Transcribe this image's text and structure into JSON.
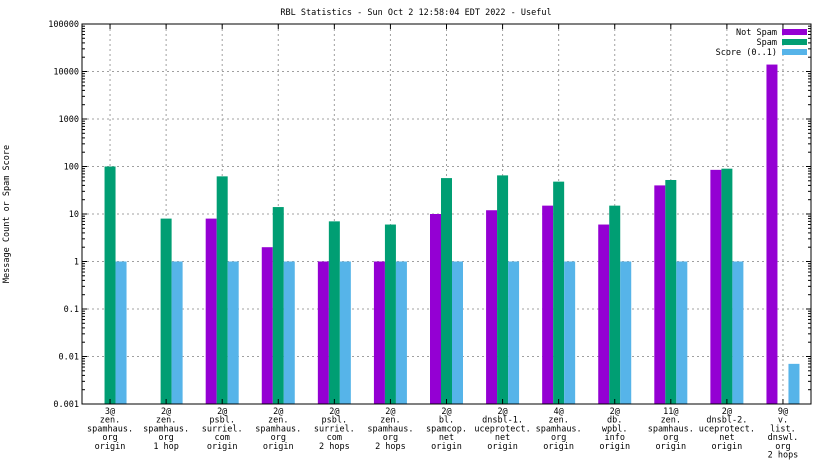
{
  "chart_data": {
    "type": "bar",
    "scale": "log",
    "title": "RBL Statistics - Sun Oct  2 12:58:04 EDT 2022 - Useful",
    "xlabel": "",
    "ylabel": "Message Count or Spam Score",
    "ylim": [
      0.001,
      100000
    ],
    "y_ticks": [
      {
        "value": 0.001,
        "label": "0.001"
      },
      {
        "value": 0.01,
        "label": "0.01"
      },
      {
        "value": 0.1,
        "label": "0.1"
      },
      {
        "value": 1,
        "label": "1"
      },
      {
        "value": 10,
        "label": "10"
      },
      {
        "value": 100,
        "label": "100"
      },
      {
        "value": 1000,
        "label": "1000"
      },
      {
        "value": 10000,
        "label": "10000"
      },
      {
        "value": 100000,
        "label": "100000"
      }
    ],
    "grid": true,
    "legend_position": "top-right",
    "categories": [
      [
        "3@",
        "zen.",
        "spamhaus.",
        "org",
        "origin"
      ],
      [
        "2@",
        "zen.",
        "spamhaus.",
        "org",
        "1 hop"
      ],
      [
        "2@",
        "psbl.",
        "surriel.",
        "com",
        "origin"
      ],
      [
        "2@",
        "zen.",
        "spamhaus.",
        "org",
        "origin"
      ],
      [
        "2@",
        "psbl.",
        "surriel.",
        "com",
        "2 hops"
      ],
      [
        "2@",
        "zen.",
        "spamhaus.",
        "org",
        "2 hops"
      ],
      [
        "2@",
        "bl.",
        "spamcop.",
        "net",
        "origin"
      ],
      [
        "2@",
        "dnsbl-1.",
        "uceprotect.",
        "net",
        "origin"
      ],
      [
        "4@",
        "zen.",
        "spamhaus.",
        "org",
        "origin"
      ],
      [
        "2@",
        "db.",
        "wpbl.",
        "info",
        "origin"
      ],
      [
        "11@",
        "zen.",
        "spamhaus.",
        "org",
        "origin"
      ],
      [
        "2@",
        "dnsbl-2.",
        "uceprotect.",
        "net",
        "origin"
      ],
      [
        "9@",
        "v.",
        "list.",
        "dnswl.",
        "org",
        "2 hops"
      ]
    ],
    "series": [
      {
        "name": "Not Spam",
        "color": "#9400d3",
        "values": [
          null,
          null,
          8,
          2,
          1,
          1,
          10,
          12,
          15,
          6,
          40,
          85,
          14000
        ]
      },
      {
        "name": "Spam",
        "color": "#009e73",
        "values": [
          100,
          8,
          62,
          14,
          7,
          6,
          57,
          65,
          48,
          15,
          52,
          90,
          null
        ]
      },
      {
        "name": "Score (0..1)",
        "color": "#56b4e9",
        "values": [
          1,
          1,
          1,
          1,
          1,
          1,
          1,
          1,
          1,
          1,
          1,
          1,
          0.007
        ]
      }
    ]
  }
}
